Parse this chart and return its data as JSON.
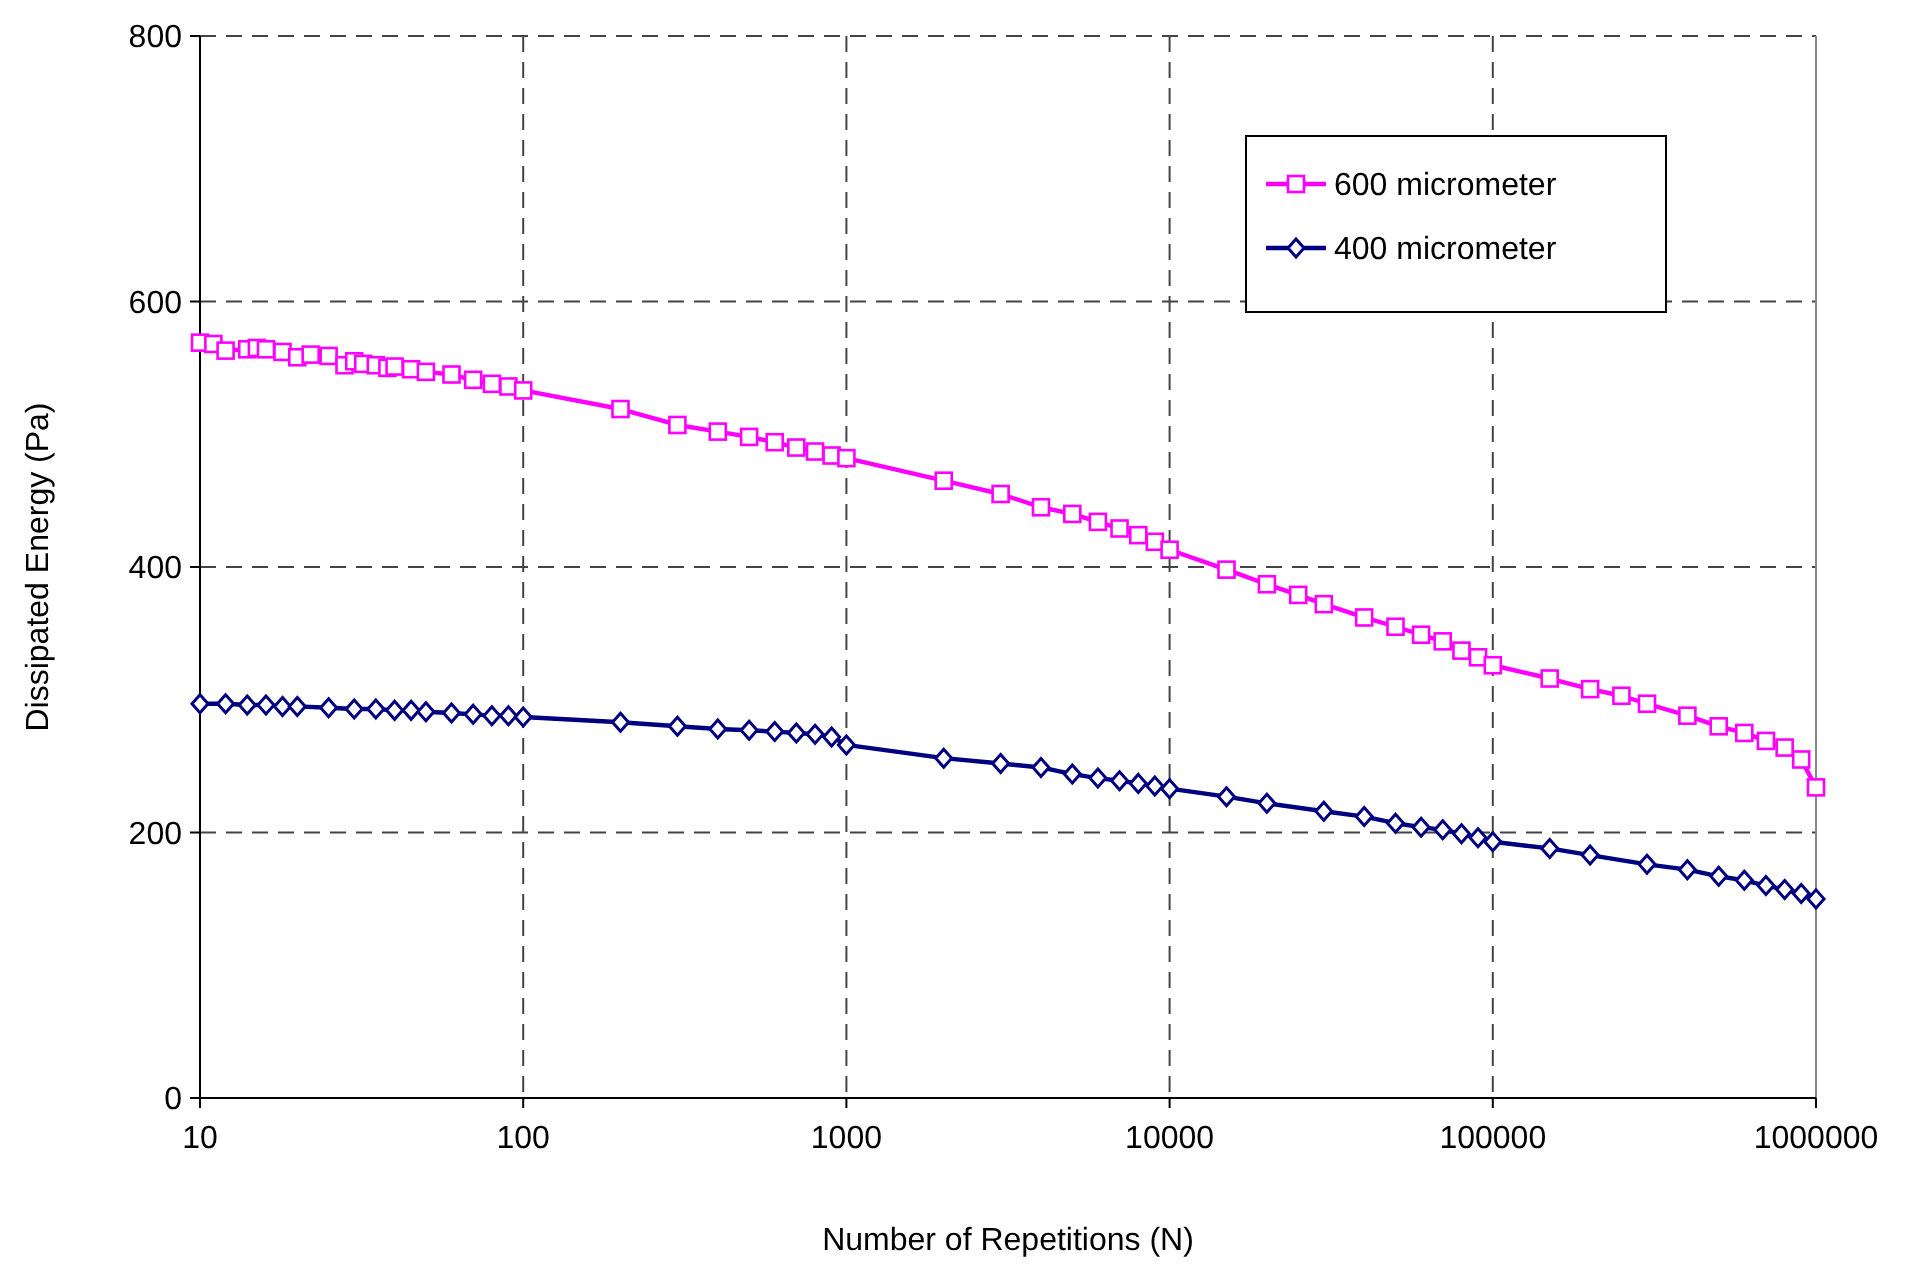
{
  "chart_data": {
    "type": "line",
    "xlabel": "Number of Repetitions (N)",
    "ylabel": "Dissipated Energy (Pa)",
    "log": "x",
    "grid": true,
    "legend": "top right",
    "line_style": "solid",
    "xlim": [
      10,
      1000000
    ],
    "xticks": [
      10,
      100,
      1000,
      10000,
      100000,
      1000000
    ],
    "ylim": [
      0,
      800
    ],
    "yticks": [
      0,
      200,
      400,
      600,
      800
    ],
    "series": [
      {
        "name": "600 micrometer",
        "color": "#ff00ff",
        "marker": "square",
        "x": [
          10,
          11,
          12,
          14,
          15,
          16,
          18,
          20,
          22,
          25,
          28,
          30,
          32,
          35,
          38,
          40,
          45,
          50,
          60,
          70,
          80,
          90,
          100,
          200,
          300,
          400,
          500,
          600,
          700,
          800,
          900,
          1000,
          2000,
          3000,
          4000,
          5000,
          6000,
          7000,
          8000,
          9000,
          10000,
          15000,
          20000,
          25000,
          30000,
          40000,
          50000,
          60000,
          70000,
          80000,
          90000,
          100000,
          150000,
          200000,
          250000,
          300000,
          400000,
          500000,
          600000,
          700000,
          800000,
          900000,
          1000000
        ],
        "values": [
          569,
          568,
          563,
          564,
          565,
          564,
          562,
          558,
          560,
          559,
          552,
          555,
          553,
          552,
          550,
          551,
          549,
          547,
          545,
          541,
          538,
          536,
          533,
          519,
          507,
          502,
          498,
          494,
          490,
          487,
          484,
          482,
          465,
          455,
          445,
          440,
          434,
          429,
          424,
          419,
          413,
          398,
          387,
          379,
          372,
          362,
          355,
          349,
          344,
          337,
          332,
          326,
          316,
          308,
          303,
          297,
          288,
          280,
          275,
          269,
          264,
          255,
          234
        ]
      },
      {
        "name": "400 micrometer",
        "color": "#000080",
        "marker": "diamond",
        "x": [
          10,
          12,
          14,
          16,
          18,
          20,
          25,
          30,
          35,
          40,
          45,
          50,
          60,
          70,
          80,
          90,
          100,
          200,
          300,
          400,
          500,
          600,
          700,
          800,
          900,
          1000,
          2000,
          3000,
          4000,
          5000,
          6000,
          7000,
          8000,
          9000,
          10000,
          15000,
          20000,
          30000,
          40000,
          50000,
          60000,
          70000,
          80000,
          90000,
          100000,
          150000,
          200000,
          300000,
          400000,
          500000,
          600000,
          700000,
          800000,
          900000,
          1000000
        ],
        "values": [
          297,
          297,
          296,
          296,
          295,
          295,
          294,
          293,
          293,
          292,
          292,
          291,
          290,
          289,
          288,
          288,
          287,
          283,
          280,
          278,
          277,
          276,
          275,
          274,
          272,
          266,
          256,
          252,
          249,
          244,
          241,
          239,
          237,
          235,
          233,
          227,
          222,
          216,
          212,
          207,
          204,
          202,
          199,
          196,
          193,
          188,
          183,
          176,
          172,
          167,
          164,
          160,
          157,
          154,
          150
        ]
      }
    ]
  }
}
